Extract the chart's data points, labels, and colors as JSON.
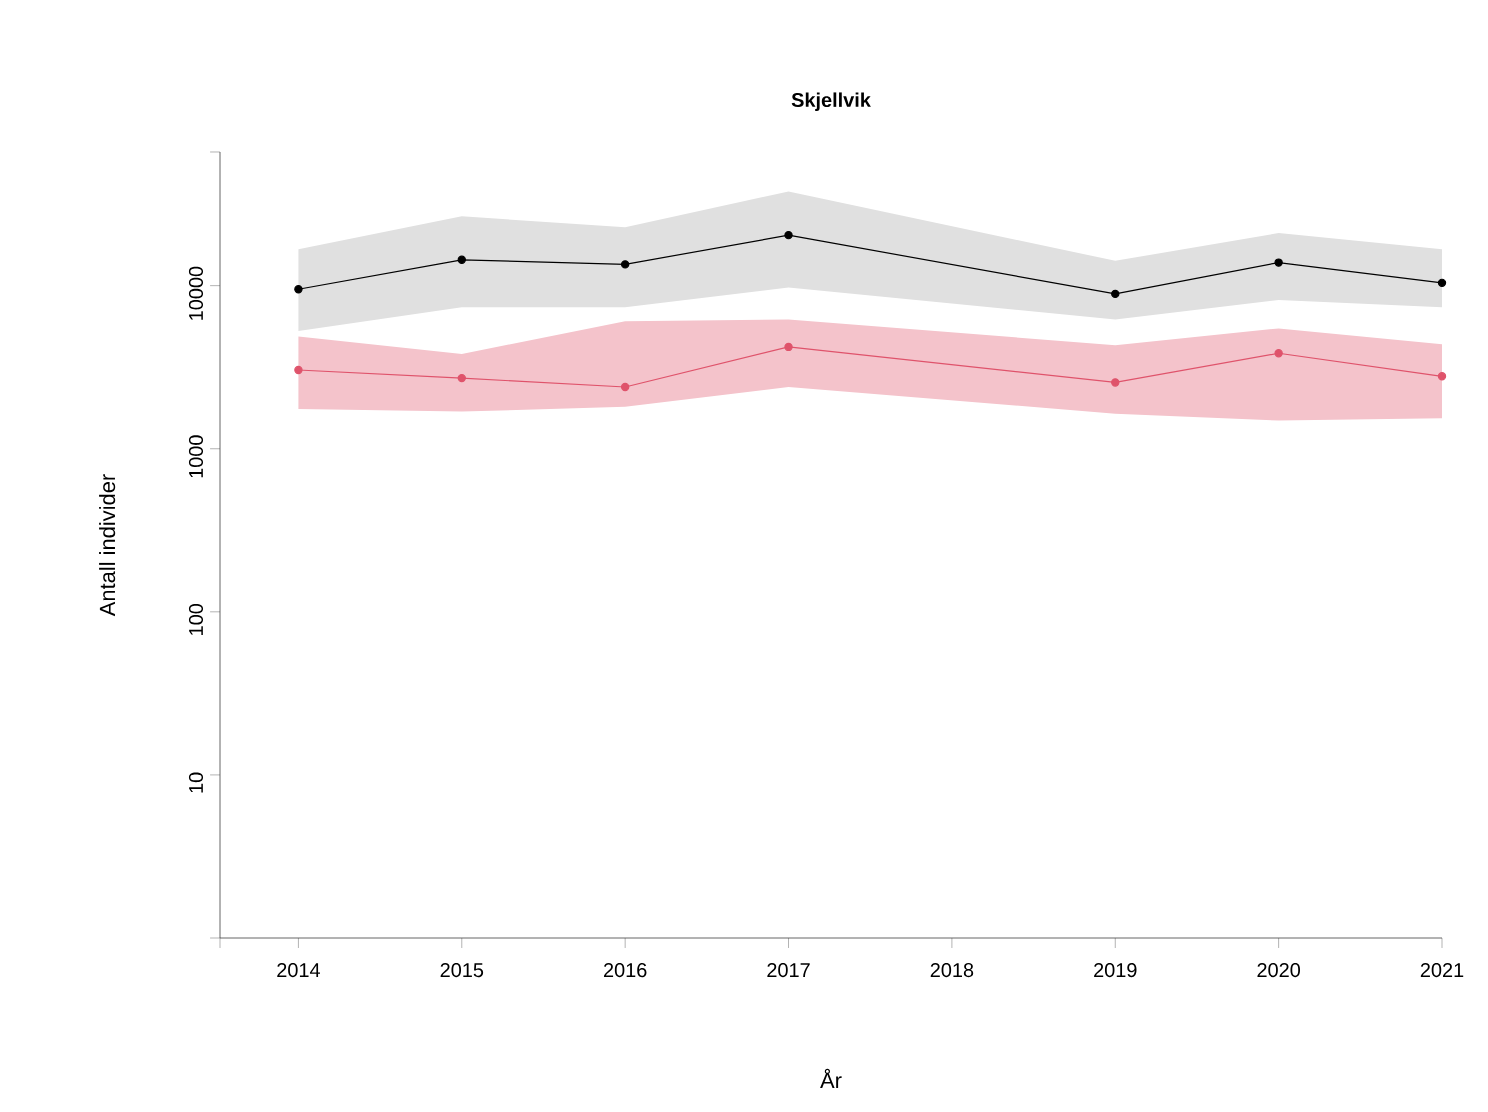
{
  "chart_data": {
    "type": "line",
    "title": "Skjellvik",
    "xlabel": "År",
    "ylabel": "Antall individer",
    "x": [
      2014,
      2015,
      2016,
      2017,
      2019,
      2020,
      2021
    ],
    "series": [
      {
        "color": "#000000",
        "values": [
          9500,
          14400,
          13500,
          20400,
          8900,
          13850,
          10400
        ],
        "lower": [
          5270,
          7380,
          7380,
          9750,
          6200,
          8170,
          7380
        ],
        "upper": [
          16700,
          26600,
          22800,
          37800,
          14200,
          21000,
          16700
        ]
      },
      {
        "color": "#df536b",
        "values": [
          3040,
          2710,
          2390,
          4210,
          2550,
          3850,
          2780
        ],
        "lower": [
          1750,
          1690,
          1810,
          2390,
          1640,
          1490,
          1540
        ],
        "upper": [
          4880,
          3810,
          6050,
          6200,
          4310,
          5470,
          4370
        ]
      }
    ],
    "log": "y",
    "marker": "circle",
    "line_style": "solid",
    "xlim": [
      2013.52,
      2021
    ],
    "ylim": [
      1,
      66000
    ],
    "xticks": [
      {
        "value": 2013.52,
        "label": null
      },
      2014,
      2015,
      2016,
      2017,
      2018,
      2019,
      2020,
      2021
    ],
    "yticks": [
      {
        "value": 1,
        "label": null
      },
      10,
      100,
      1000,
      10000,
      {
        "value": 66000,
        "label": null
      }
    ]
  }
}
